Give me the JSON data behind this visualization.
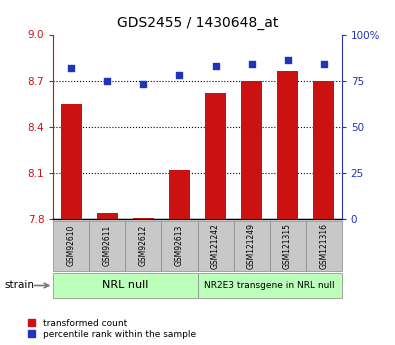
{
  "title": "GDS2455 / 1430648_at",
  "samples": [
    "GSM92610",
    "GSM92611",
    "GSM92612",
    "GSM92613",
    "GSM121242",
    "GSM121249",
    "GSM121315",
    "GSM121316"
  ],
  "bar_values": [
    8.55,
    7.84,
    7.81,
    8.12,
    8.62,
    8.7,
    8.76,
    8.7
  ],
  "scatter_values": [
    82,
    75,
    73,
    78,
    83,
    84,
    86,
    84
  ],
  "ylim_left": [
    7.8,
    9.0
  ],
  "ylim_right": [
    0,
    100
  ],
  "yticks_left": [
    7.8,
    8.1,
    8.4,
    8.7,
    9.0
  ],
  "yticks_right": [
    0,
    25,
    50,
    75,
    100
  ],
  "ytick_right_labels": [
    "0",
    "25",
    "50",
    "75",
    "100%"
  ],
  "bar_color": "#cc1111",
  "scatter_color": "#2233bb",
  "group1_label": "NRL null",
  "group2_label": "NR2E3 transgene in NRL null",
  "group1_indices": [
    0,
    1,
    2,
    3
  ],
  "group2_indices": [
    4,
    5,
    6,
    7
  ],
  "group_bg_color": "#bbffbb",
  "sample_bg_color": "#c8c8c8",
  "legend_bar": "transformed count",
  "legend_scatter": "percentile rank within the sample",
  "strain_label": "strain",
  "bg_color": "#ffffff"
}
